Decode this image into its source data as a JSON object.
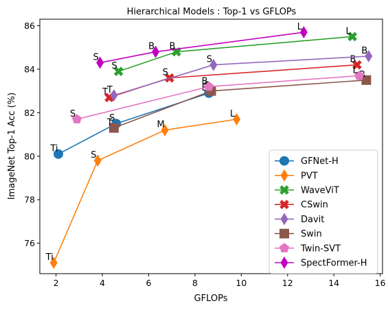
{
  "chart_data": {
    "type": "line",
    "title": "Hierarchical Models : Top-1 vs GFLOPs",
    "xlabel": "GFLOPs",
    "ylabel": "ImageNet Top-1 Acc (%)",
    "xlim": [
      1.3,
      16.1
    ],
    "ylim": [
      74.6,
      86.3
    ],
    "xticks": [
      2,
      4,
      6,
      8,
      10,
      12,
      14,
      16
    ],
    "yticks": [
      76,
      78,
      80,
      82,
      84,
      86
    ],
    "grid": false,
    "legend_position": "lower-right",
    "series": [
      {
        "name": "GFNet-H",
        "color": "#1f77b4",
        "marker": "circle",
        "x": [
          2.1,
          4.6,
          8.6
        ],
        "y": [
          80.1,
          81.5,
          82.9
        ],
        "labels": [
          "Ti",
          "S",
          "B"
        ]
      },
      {
        "name": "PVT",
        "color": "#ff7f0e",
        "marker": "thin_diamond",
        "x": [
          1.9,
          3.8,
          6.7,
          9.8
        ],
        "y": [
          75.1,
          79.8,
          81.2,
          81.7
        ],
        "labels": [
          "Ti",
          "S",
          "M",
          "L"
        ]
      },
      {
        "name": "WaveViT",
        "color": "#2ca02c",
        "marker": "x",
        "x": [
          4.7,
          7.2,
          14.8
        ],
        "y": [
          83.9,
          84.8,
          85.5
        ],
        "labels": [
          "S",
          "B",
          "L"
        ]
      },
      {
        "name": "CSwin",
        "color": "#d62728",
        "marker": "x",
        "x": [
          4.3,
          6.9,
          15.0
        ],
        "y": [
          82.7,
          83.6,
          84.2
        ],
        "labels": [
          "T",
          "S",
          "B"
        ]
      },
      {
        "name": "Davit",
        "color": "#9467bd",
        "marker": "thin_diamond",
        "x": [
          4.5,
          8.8,
          15.5
        ],
        "y": [
          82.8,
          84.2,
          84.6
        ],
        "labels": [
          "T",
          "S",
          "B"
        ]
      },
      {
        "name": "Swin",
        "color": "#8c564b",
        "marker": "square",
        "x": [
          4.5,
          8.7,
          15.4
        ],
        "y": [
          81.3,
          83.0,
          83.5
        ],
        "labels": [
          "T",
          "S",
          "B"
        ]
      },
      {
        "name": "Twin-SVT",
        "color": "#e377c2",
        "marker": "pentagon",
        "x": [
          2.9,
          8.6,
          15.1
        ],
        "y": [
          81.7,
          83.2,
          83.7
        ],
        "labels": [
          "S",
          "B",
          "L"
        ]
      },
      {
        "name": "SpectFormer-H",
        "color": "#c000c0",
        "marker": "thin_diamond",
        "x": [
          3.9,
          6.3,
          12.7
        ],
        "y": [
          84.3,
          84.8,
          85.7
        ],
        "labels": [
          "S",
          "B",
          "L"
        ]
      }
    ]
  }
}
